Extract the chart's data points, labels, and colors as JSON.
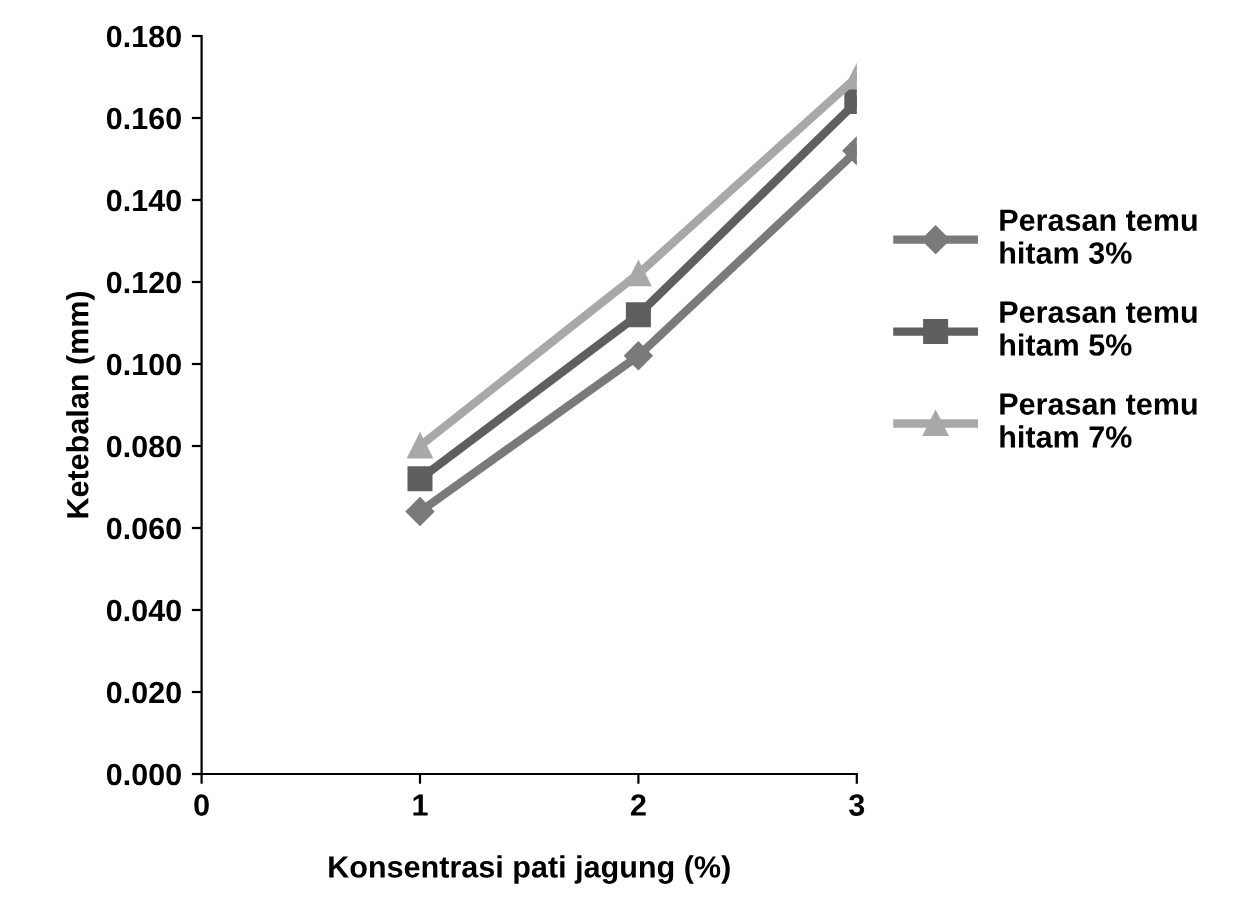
{
  "chart_data": {
    "type": "line",
    "xlabel": "Konsentrasi pati jagung (%)",
    "ylabel": "Ketebalan (mm)",
    "x": [
      1,
      2,
      3
    ],
    "xlim": [
      0,
      3
    ],
    "xticks": [
      0,
      1,
      2,
      3
    ],
    "ylim": [
      0,
      0.18
    ],
    "yticks": [
      {
        "value": 0,
        "label": "0.000"
      },
      {
        "value": 0.02,
        "label": "0.020"
      },
      {
        "value": 0.04,
        "label": "0.040"
      },
      {
        "value": 0.06,
        "label": "0.060"
      },
      {
        "value": 0.08,
        "label": "0.080"
      },
      {
        "value": 0.1,
        "label": "0.100"
      },
      {
        "value": 0.12,
        "label": "0.120"
      },
      {
        "value": 0.14,
        "label": "0.140"
      },
      {
        "value": 0.16,
        "label": "0.160"
      },
      {
        "value": 0.18,
        "label": "0.180"
      }
    ],
    "grid": false,
    "legend": "right",
    "series": [
      {
        "name": "Perasan temu hitam 3%",
        "color": "#7a7a7a",
        "marker": "diamond",
        "values": [
          0.064,
          0.102,
          0.152
        ]
      },
      {
        "name": "Perasan temu hitam 5%",
        "color": "#5f5f5f",
        "marker": "square",
        "values": [
          0.072,
          0.112,
          0.164
        ]
      },
      {
        "name": "Perasan temu hitam 7%",
        "color": "#a8a8a8",
        "marker": "triangle",
        "values": [
          0.08,
          0.122,
          0.17
        ]
      }
    ]
  }
}
